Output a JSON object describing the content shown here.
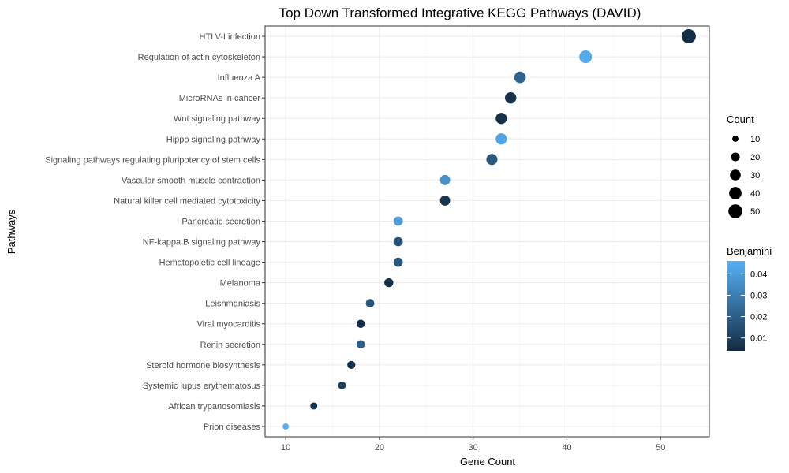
{
  "chart_data": {
    "type": "scatter",
    "title": "Top Down Transformed Integrative KEGG Pathways (DAVID)",
    "xlabel": "Gene Count",
    "ylabel": "Pathways",
    "xlim": [
      7.8,
      55.2
    ],
    "xticks": [
      10,
      20,
      30,
      40,
      50
    ],
    "grid": true,
    "legend_position": "right",
    "categories": [
      "HTLV-I infection",
      "Regulation of actin cytoskeleton",
      "Influenza A",
      "MicroRNAs in cancer",
      "Wnt signaling pathway",
      "Hippo signaling pathway",
      "Signaling pathways regulating pluripotency of stem cells",
      "Vascular smooth muscle contraction",
      "Natural killer cell mediated cytotoxicity",
      "Pancreatic secretion",
      "NF-kappa B signaling pathway",
      "Hematopoietic cell lineage",
      "Melanoma",
      "Leishmaniasis",
      "Viral myocarditis",
      "Renin secretion",
      "Steroid hormone biosynthesis",
      "Systemic lupus erythematosus",
      "African trypanosomiasis",
      "Prion diseases"
    ],
    "points": [
      {
        "pathway": "HTLV-I infection",
        "count": 53,
        "benjamini": 0.005
      },
      {
        "pathway": "Regulation of actin cytoskeleton",
        "count": 42,
        "benjamini": 0.044
      },
      {
        "pathway": "Influenza A",
        "count": 35,
        "benjamini": 0.022
      },
      {
        "pathway": "MicroRNAs in cancer",
        "count": 34,
        "benjamini": 0.006
      },
      {
        "pathway": "Wnt signaling pathway",
        "count": 33,
        "benjamini": 0.006
      },
      {
        "pathway": "Hippo signaling pathway",
        "count": 33,
        "benjamini": 0.042
      },
      {
        "pathway": "Signaling pathways regulating pluripotency of stem cells",
        "count": 32,
        "benjamini": 0.018
      },
      {
        "pathway": "Vascular smooth muscle contraction",
        "count": 27,
        "benjamini": 0.036
      },
      {
        "pathway": "Natural killer cell mediated cytotoxicity",
        "count": 27,
        "benjamini": 0.007
      },
      {
        "pathway": "Pancreatic secretion",
        "count": 22,
        "benjamini": 0.04
      },
      {
        "pathway": "NF-kappa B signaling pathway",
        "count": 22,
        "benjamini": 0.016
      },
      {
        "pathway": "Hematopoietic cell lineage",
        "count": 22,
        "benjamini": 0.018
      },
      {
        "pathway": "Melanoma",
        "count": 21,
        "benjamini": 0.005
      },
      {
        "pathway": "Leishmaniasis",
        "count": 19,
        "benjamini": 0.018
      },
      {
        "pathway": "Viral myocarditis",
        "count": 18,
        "benjamini": 0.005
      },
      {
        "pathway": "Renin secretion",
        "count": 18,
        "benjamini": 0.02
      },
      {
        "pathway": "Steroid hormone biosynthesis",
        "count": 17,
        "benjamini": 0.006
      },
      {
        "pathway": "Systemic lupus erythematosus",
        "count": 16,
        "benjamini": 0.01
      },
      {
        "pathway": "African trypanosomiasis",
        "count": 13,
        "benjamini": 0.007
      },
      {
        "pathway": "Prion diseases",
        "count": 10,
        "benjamini": 0.045
      }
    ],
    "size_legend": {
      "title": "Count",
      "breaks": [
        10,
        20,
        30,
        40,
        50
      ]
    },
    "color_legend": {
      "title": "Benjamini",
      "breaks": [
        0.04,
        0.03,
        0.02,
        0.01
      ],
      "range": [
        0.004,
        0.046
      ],
      "low_color": "#132B43",
      "high_color": "#56B1F7"
    }
  }
}
